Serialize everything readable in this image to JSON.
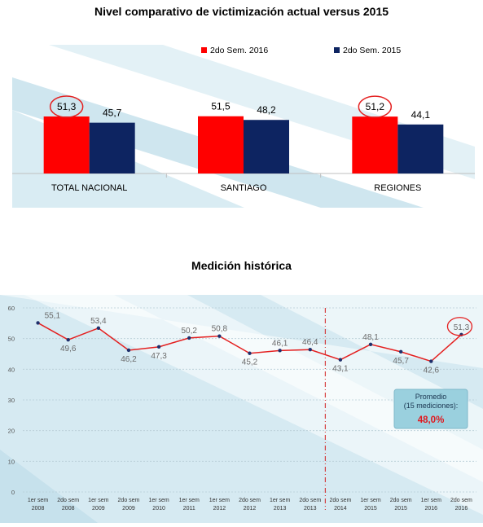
{
  "chart_data": [
    {
      "type": "bar",
      "title": "Nivel comparativo de victimización actual versus 2015",
      "categories": [
        "TOTAL NACIONAL",
        "SANTIAGO",
        "REGIONES"
      ],
      "series": [
        {
          "name": "2do Sem. 2016",
          "color": "#ff0000",
          "values": [
            "51,3",
            "51,5",
            "51,2"
          ],
          "highlighted": [
            true,
            false,
            true
          ]
        },
        {
          "name": "2do Sem. 2015",
          "color": "#0d2461",
          "values": [
            "45,7",
            "48,2",
            "44,1"
          ]
        }
      ],
      "legend_position": "top-right",
      "grid": false
    },
    {
      "type": "line",
      "title": "Medición histórica",
      "x": [
        "1er sem 2008",
        "2do sem 2008",
        "1er sem 2009",
        "2do sem 2009",
        "1er sem 2010",
        "1er sem 2011",
        "1er sem 2012",
        "2do sem 2012",
        "1er sem 2013",
        "2do sem 2013",
        "2do sem 2014",
        "1er sem 2015",
        "2do sem 2015",
        "1er sem 2016",
        "2do sem 2016"
      ],
      "values": [
        "55,1",
        "49,6",
        "53,4",
        "46,2",
        "47,3",
        "50,2",
        "50,8",
        "45,2",
        "46,1",
        "46,4",
        "43,1",
        "48,1",
        "45,7",
        "42,6",
        "51,3"
      ],
      "yticks": [
        "0",
        "10",
        "20",
        "30",
        "40",
        "50",
        "60"
      ],
      "ylim": [
        0,
        60
      ],
      "line_color": "#e41f1f",
      "marker_color": "#1f2f6b",
      "label_color": "#6b6b6b",
      "highlighted_point": "51,3",
      "grid": true,
      "callout": {
        "lines": [
          "Promedio",
          "(15 mediciones):"
        ],
        "value": "48,0%",
        "value_color": "#e0191f"
      }
    }
  ]
}
